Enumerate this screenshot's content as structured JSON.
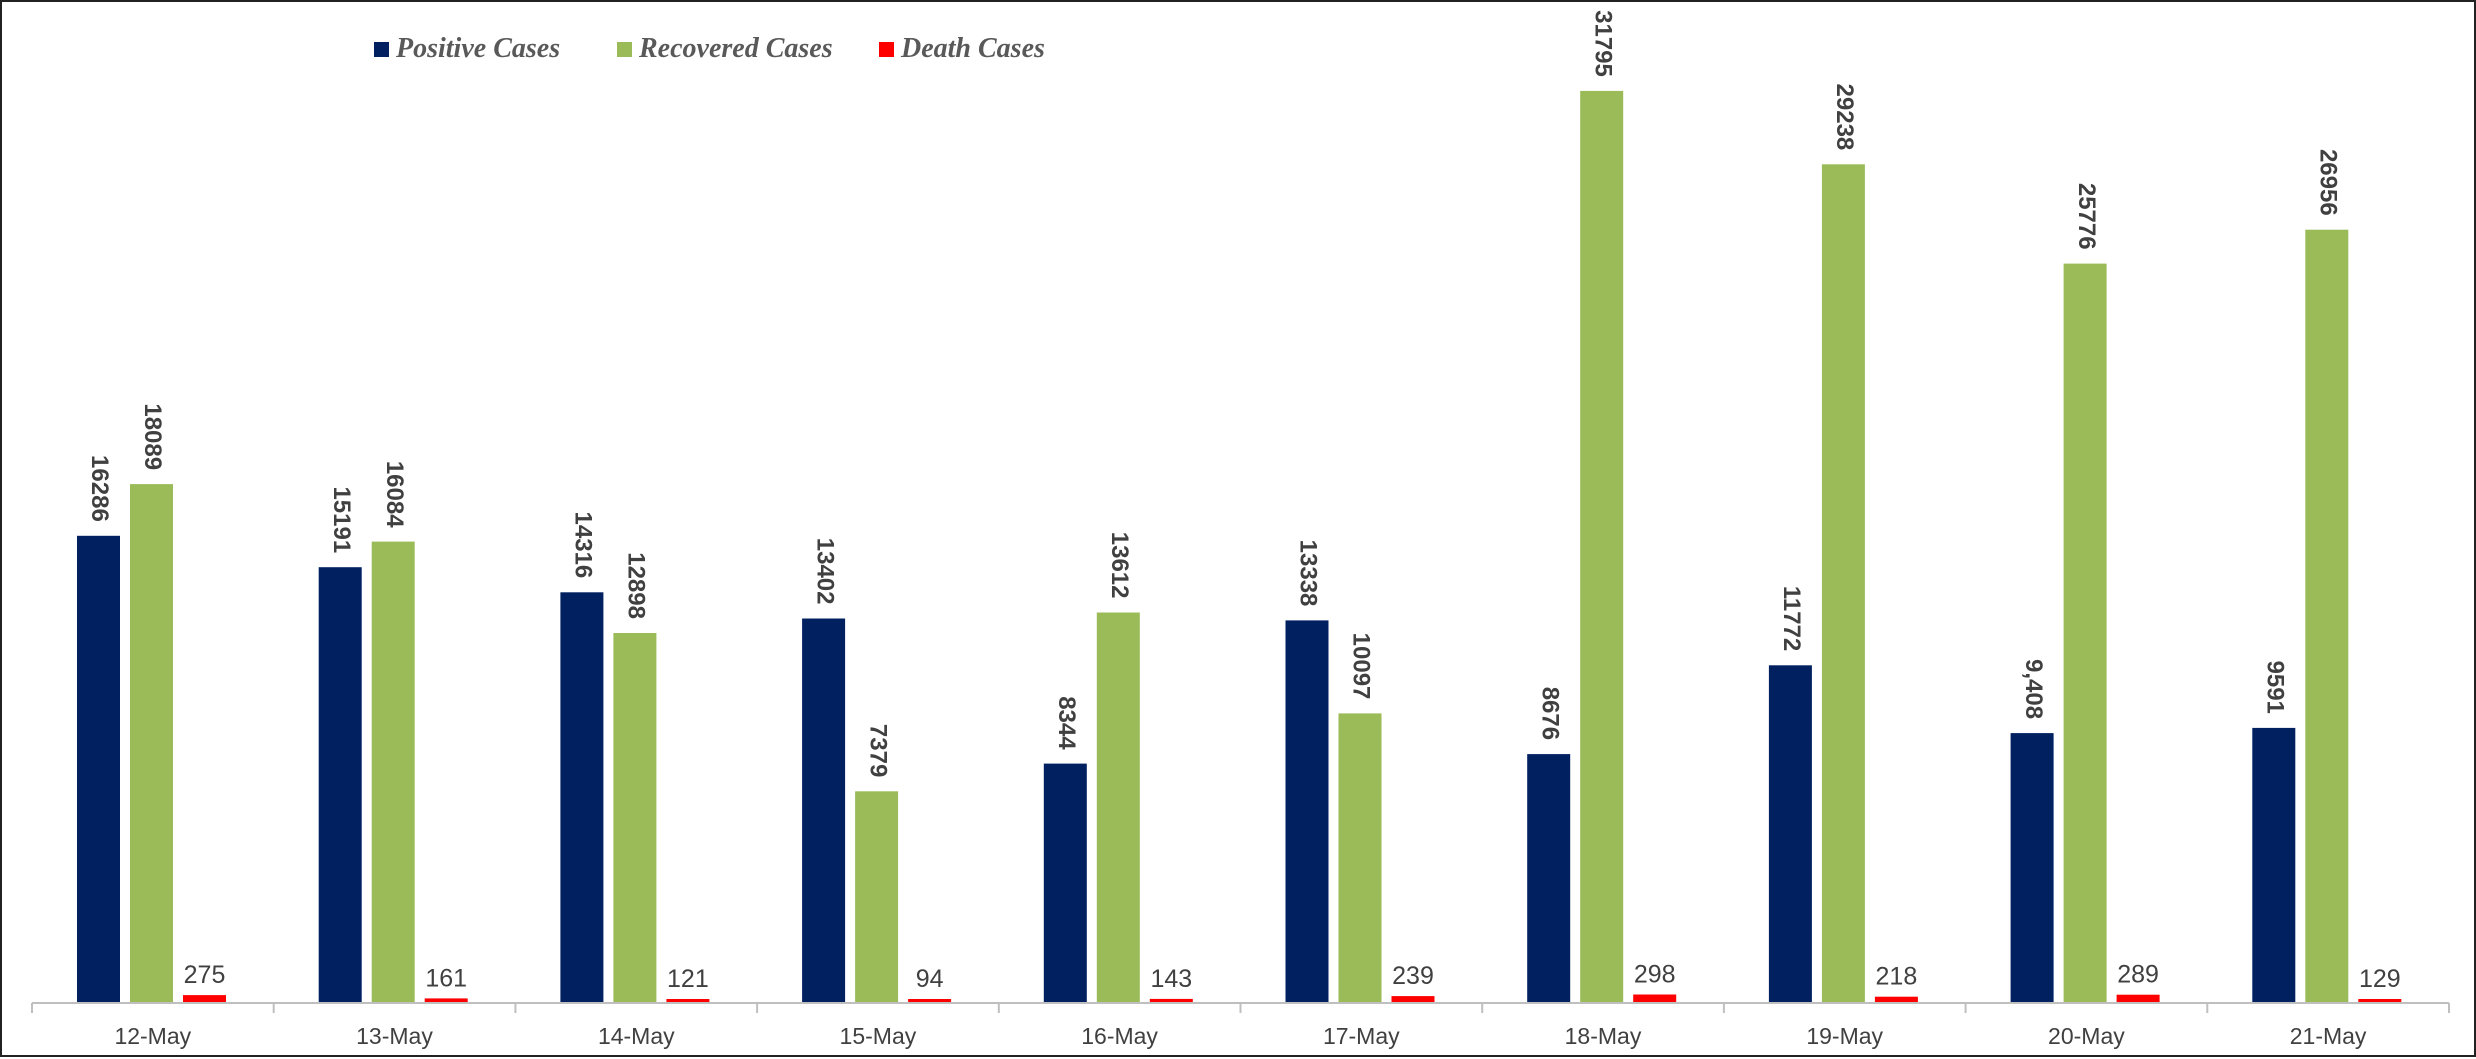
{
  "chart_data": {
    "type": "bar",
    "title": "",
    "xlabel": "",
    "ylabel": "",
    "ylim": [
      0,
      33500
    ],
    "grid": false,
    "legend_position": "top-left",
    "categories": [
      "12-May",
      "13-May",
      "14-May",
      "15-May",
      "16-May",
      "17-May",
      "18-May",
      "19-May",
      "20-May",
      "21-May"
    ],
    "series": [
      {
        "name": "Positive Cases",
        "color": "#002060",
        "values": [
          16286,
          15191,
          14316,
          13402,
          8344,
          13338,
          8676,
          11772,
          9408,
          9591
        ],
        "labels": [
          "16286",
          "15191",
          "14316",
          "13402",
          "8344",
          "13338",
          "8676",
          "11772",
          "9,408",
          "9591"
        ],
        "label_rotation": "vertical"
      },
      {
        "name": "Recovered Cases",
        "color": "#9BBB59",
        "values": [
          18089,
          16084,
          12898,
          7379,
          13612,
          10097,
          31795,
          29238,
          25776,
          26956
        ],
        "labels": [
          "18089",
          "16084",
          "12898",
          "7379",
          "13612",
          "10097",
          "31795",
          "29238",
          "25776",
          "26956"
        ],
        "label_rotation": "vertical"
      },
      {
        "name": "Death Cases",
        "color": "#FF0000",
        "values": [
          275,
          161,
          121,
          94,
          143,
          239,
          298,
          218,
          289,
          129
        ],
        "labels": [
          "275",
          "161",
          "121",
          "94",
          "143",
          "239",
          "298",
          "218",
          "289",
          "129"
        ],
        "label_rotation": "horizontal"
      }
    ]
  }
}
